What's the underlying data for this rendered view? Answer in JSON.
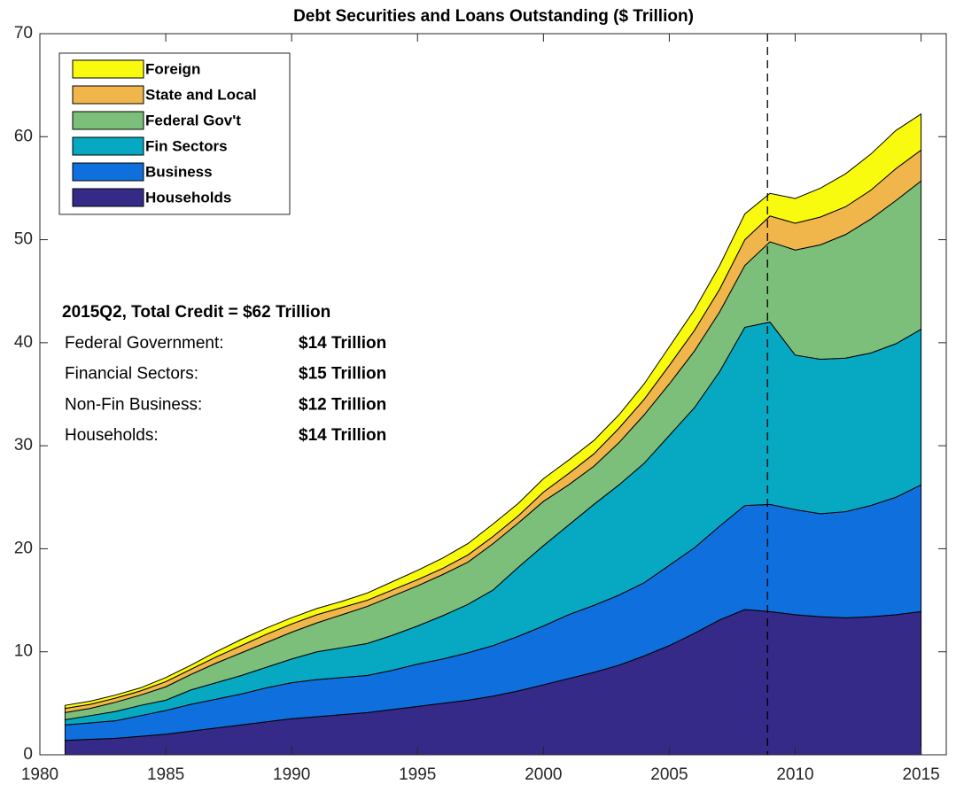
{
  "chart_data": {
    "type": "stacked-area",
    "title": "Debt Securities and Loans Outstanding ($ Trillion)",
    "x": [
      1981,
      1982,
      1983,
      1984,
      1985,
      1986,
      1987,
      1988,
      1989,
      1990,
      1991,
      1992,
      1993,
      1994,
      1995,
      1996,
      1997,
      1998,
      1999,
      2000,
      2001,
      2002,
      2003,
      2004,
      2005,
      2006,
      2007,
      2008,
      2009,
      2010,
      2011,
      2012,
      2013,
      2014,
      2015
    ],
    "series": [
      {
        "name": "Households",
        "color": "#352a87",
        "values": [
          1.4,
          1.5,
          1.6,
          1.8,
          2.0,
          2.3,
          2.6,
          2.9,
          3.2,
          3.5,
          3.7,
          3.9,
          4.1,
          4.4,
          4.7,
          5.0,
          5.3,
          5.7,
          6.2,
          6.8,
          7.4,
          8.0,
          8.7,
          9.6,
          10.6,
          11.8,
          13.1,
          14.1,
          13.9,
          13.6,
          13.4,
          13.3,
          13.4,
          13.6,
          13.9
        ]
      },
      {
        "name": "Business",
        "color": "#0f6fdc",
        "values": [
          1.5,
          1.6,
          1.7,
          2.0,
          2.3,
          2.6,
          2.8,
          3.0,
          3.3,
          3.5,
          3.6,
          3.6,
          3.6,
          3.8,
          4.1,
          4.3,
          4.6,
          4.9,
          5.3,
          5.7,
          6.2,
          6.5,
          6.8,
          7.1,
          7.8,
          8.3,
          9.1,
          10.1,
          10.4,
          10.2,
          10.0,
          10.3,
          10.8,
          11.4,
          12.3
        ]
      },
      {
        "name": "Fin Sectors",
        "color": "#07a8c2",
        "values": [
          0.5,
          0.7,
          0.9,
          1.0,
          1.0,
          1.4,
          1.6,
          1.8,
          2.0,
          2.3,
          2.7,
          2.9,
          3.1,
          3.4,
          3.7,
          4.2,
          4.7,
          5.4,
          6.7,
          7.8,
          8.7,
          9.8,
          10.7,
          11.6,
          12.6,
          13.6,
          15.0,
          17.3,
          17.7,
          15.0,
          15.0,
          14.9,
          14.8,
          14.9,
          15.1
        ]
      },
      {
        "name": "Federal Gov't",
        "color": "#7cbf7b",
        "values": [
          0.7,
          0.7,
          0.9,
          1.0,
          1.3,
          1.5,
          1.9,
          2.2,
          2.4,
          2.6,
          2.8,
          3.2,
          3.6,
          3.8,
          3.9,
          4.0,
          4.1,
          4.5,
          4.3,
          4.3,
          3.9,
          3.7,
          4.1,
          4.7,
          5.0,
          5.5,
          5.8,
          6.0,
          7.8,
          10.2,
          11.1,
          12.0,
          13.0,
          13.9,
          14.4
        ]
      },
      {
        "name": "State and Local",
        "color": "#f0b64c",
        "values": [
          0.4,
          0.4,
          0.4,
          0.4,
          0.5,
          0.5,
          0.6,
          0.7,
          0.8,
          0.8,
          0.8,
          0.7,
          0.6,
          0.6,
          0.6,
          0.6,
          0.7,
          0.7,
          0.7,
          0.9,
          1.1,
          1.2,
          1.4,
          1.5,
          1.8,
          2.0,
          2.2,
          2.5,
          2.5,
          2.6,
          2.7,
          2.7,
          2.8,
          3.1,
          3.0
        ]
      },
      {
        "name": "Foreign",
        "color": "#f9fb0e",
        "values": [
          0.3,
          0.3,
          0.3,
          0.3,
          0.4,
          0.4,
          0.5,
          0.6,
          0.6,
          0.6,
          0.6,
          0.6,
          0.7,
          0.8,
          0.9,
          1.0,
          1.1,
          1.2,
          1.2,
          1.3,
          1.3,
          1.3,
          1.3,
          1.5,
          1.8,
          2.0,
          2.3,
          2.5,
          2.2,
          2.4,
          2.8,
          3.2,
          3.5,
          3.7,
          3.5
        ]
      }
    ],
    "xlim": [
      1980,
      2016
    ],
    "xticks": [
      1980,
      1985,
      1990,
      1995,
      2000,
      2005,
      2010,
      2015
    ],
    "ylim": [
      0,
      70
    ],
    "yticks": [
      0,
      10,
      20,
      30,
      40,
      50,
      60,
      70
    ],
    "vline": 2008.9,
    "legend": "upper-left",
    "annotation": {
      "title": "2015Q2, Total Credit = $62 Trillion",
      "rows": [
        {
          "label": "Federal Government:",
          "value": "$14 Trillion"
        },
        {
          "label": "Financial Sectors:",
          "value": "$15 Trillion"
        },
        {
          "label": "Non-Fin Business:",
          "value": "$12 Trillion"
        },
        {
          "label": "Households:",
          "value": "$14 Trillion"
        }
      ]
    }
  }
}
